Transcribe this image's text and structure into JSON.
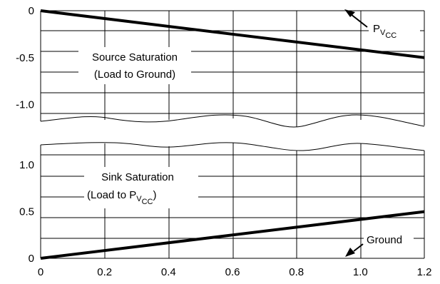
{
  "chart_data": [
    {
      "type": "line",
      "panel": "upper",
      "x": [
        0,
        0.2,
        0.4,
        0.6,
        0.8,
        1.0,
        1.2
      ],
      "xlim": [
        0,
        1.2
      ],
      "ylim": [
        -1.3,
        0
      ],
      "y_ticks": [
        "0",
        "-0.5",
        "-1.0"
      ],
      "y_tick_values": [
        0,
        -0.5,
        -1.0
      ],
      "series": [
        {
          "name_main": "P",
          "name_sub": "V",
          "name_sub2": "CC",
          "x": [
            0,
            1.2
          ],
          "y": [
            0,
            -0.5
          ]
        }
      ],
      "annotations": {
        "line1": "Source Saturation",
        "line2": "(Load to Ground)"
      }
    },
    {
      "type": "line",
      "panel": "lower",
      "x": [
        0,
        0.2,
        0.4,
        0.6,
        0.8,
        1.0,
        1.2
      ],
      "xlim": [
        0,
        1.2
      ],
      "ylim": [
        0,
        1.3
      ],
      "y_ticks": [
        "1.0",
        "0.5",
        "0"
      ],
      "y_tick_values": [
        1.0,
        0.5,
        0
      ],
      "x_ticks": [
        "0",
        "0.2",
        "0.4",
        "0.6",
        "0.8",
        "1.0",
        "1.2"
      ],
      "series": [
        {
          "name": "Ground",
          "x": [
            0,
            1.2
          ],
          "y": [
            0,
            0.5
          ]
        }
      ],
      "annotations": {
        "line1": "Sink Saturation",
        "line2_main": "(Load to P",
        "line2_sub": "V",
        "line2_sub2": "CC",
        "line2_end": ")"
      }
    }
  ]
}
